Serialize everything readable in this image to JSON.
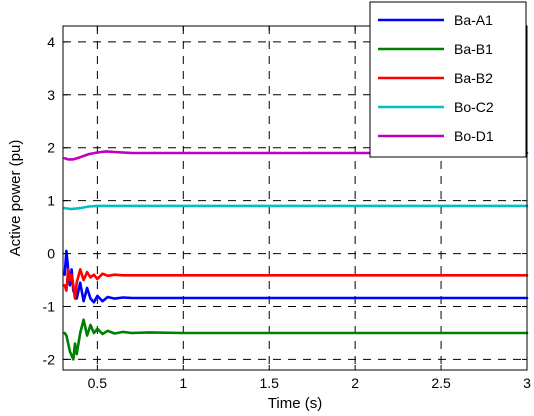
{
  "chart_data": {
    "type": "line",
    "xlabel": "Time (s)",
    "ylabel": "Active power (pu)",
    "xlim": [
      0.3,
      3
    ],
    "ylim": [
      -2.2,
      4.3
    ],
    "xticks": [
      0.5,
      1,
      1.5,
      2,
      2.5,
      3
    ],
    "xtick_labels": [
      "0.5",
      "1",
      "1.5",
      "2",
      "2.5",
      "3"
    ],
    "yticks": [
      -2,
      -1,
      0,
      1,
      2,
      3,
      4
    ],
    "ytick_labels": [
      "-2",
      "-1",
      "0",
      "1",
      "2",
      "3",
      "4"
    ],
    "grid": true,
    "legend_position": "top-right",
    "series": [
      {
        "name": "Ba-A1",
        "color": "#0000ff",
        "x": [
          0.31,
          0.32,
          0.33,
          0.34,
          0.35,
          0.36,
          0.38,
          0.4,
          0.42,
          0.44,
          0.46,
          0.48,
          0.5,
          0.53,
          0.56,
          0.6,
          0.65,
          0.7,
          3.0
        ],
        "y": [
          -0.4,
          0.05,
          -0.3,
          -0.6,
          -0.3,
          -0.7,
          -0.85,
          -0.55,
          -0.9,
          -0.65,
          -0.85,
          -0.92,
          -0.8,
          -0.9,
          -0.82,
          -0.85,
          -0.83,
          -0.84,
          -0.84
        ]
      },
      {
        "name": "Ba-B1",
        "color": "#008000",
        "x": [
          0.31,
          0.32,
          0.33,
          0.34,
          0.36,
          0.37,
          0.38,
          0.4,
          0.42,
          0.44,
          0.46,
          0.48,
          0.5,
          0.53,
          0.56,
          0.6,
          0.65,
          0.7,
          0.8,
          1.0,
          1.1,
          3.0
        ],
        "y": [
          -1.5,
          -1.55,
          -1.7,
          -1.85,
          -2.0,
          -1.7,
          -1.9,
          -1.5,
          -1.25,
          -1.55,
          -1.35,
          -1.5,
          -1.42,
          -1.52,
          -1.46,
          -1.51,
          -1.48,
          -1.5,
          -1.49,
          -1.5,
          -1.5,
          -1.5
        ]
      },
      {
        "name": "Ba-B2",
        "color": "#ff0000",
        "x": [
          0.31,
          0.32,
          0.33,
          0.34,
          0.35,
          0.36,
          0.37,
          0.38,
          0.4,
          0.42,
          0.44,
          0.46,
          0.48,
          0.5,
          0.53,
          0.56,
          0.6,
          0.65,
          3.0
        ],
        "y": [
          -0.6,
          -0.7,
          -0.3,
          -0.5,
          -0.4,
          -0.6,
          -0.85,
          -0.55,
          -0.3,
          -0.5,
          -0.35,
          -0.45,
          -0.4,
          -0.48,
          -0.38,
          -0.42,
          -0.4,
          -0.41,
          -0.41
        ]
      },
      {
        "name": "Bo-C2",
        "color": "#00c0c0",
        "x": [
          0.31,
          0.35,
          0.4,
          0.45,
          0.5,
          0.6,
          3.0
        ],
        "y": [
          0.86,
          0.84,
          0.86,
          0.89,
          0.9,
          0.9,
          0.9
        ]
      },
      {
        "name": "Bo-D1",
        "color": "#c000c0",
        "x": [
          0.31,
          0.33,
          0.36,
          0.4,
          0.45,
          0.5,
          0.55,
          0.6,
          0.7,
          3.0
        ],
        "y": [
          1.8,
          1.78,
          1.78,
          1.82,
          1.88,
          1.91,
          1.93,
          1.92,
          1.9,
          1.9
        ]
      }
    ]
  }
}
